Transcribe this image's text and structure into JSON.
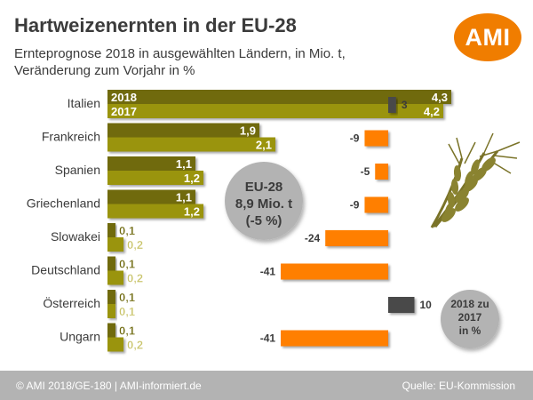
{
  "header": {
    "title": "Hartweizenernten in der EU-28",
    "subtitle": "Ernteprognose 2018 in ausgewählten Ländern, in Mio. t,\nVeränderung zum Vorjahr in %"
  },
  "logo": {
    "text": "AMI",
    "color": "#f07d00"
  },
  "footer": {
    "left": "© AMI 2018/GE-180 | AMI-informiert.de",
    "right": "Quelle: EU-Kommission"
  },
  "chart_data": {
    "type": "bar",
    "categories": [
      "Italien",
      "Frankreich",
      "Spanien",
      "Griechenland",
      "Slowakei",
      "Deutschland",
      "Österreich",
      "Ungarn"
    ],
    "series": [
      {
        "name": "2018",
        "values": [
          4.3,
          1.9,
          1.1,
          1.1,
          0.1,
          0.1,
          0.1,
          0.1
        ],
        "labels": [
          "4,3",
          "1,9",
          "1,1",
          "1,1",
          "0,1",
          "0,1",
          "0,1",
          "0,1"
        ],
        "color": "#6f6a0f"
      },
      {
        "name": "2017",
        "values": [
          4.2,
          2.1,
          1.2,
          1.2,
          0.2,
          0.2,
          0.1,
          0.2
        ],
        "labels": [
          "4,2",
          "2,1",
          "1,2",
          "1,2",
          "0,2",
          "0,2",
          "0,1",
          "0,2"
        ],
        "color": "#9a9411"
      }
    ],
    "change": {
      "values": [
        3,
        -9,
        -5,
        -9,
        -24,
        -41,
        10,
        -41
      ],
      "labels": [
        "3",
        "-9",
        "-5",
        "-9",
        "-24",
        "-41",
        "10",
        "-41"
      ],
      "negative_color": "#ff7f00",
      "positive_color": "#4a4a4a"
    },
    "eu_box": {
      "line1": "EU-28",
      "line2": "8,9 Mio. t",
      "line3": "(-5 %)"
    },
    "change_note": {
      "line1": "2018 zu",
      "line2": "2017",
      "line3": "in %"
    }
  }
}
